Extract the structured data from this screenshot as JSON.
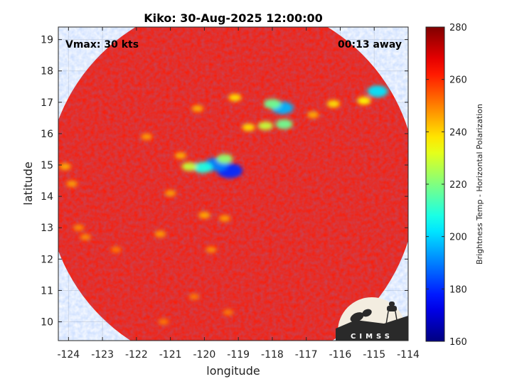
{
  "chart_data": {
    "type": "heatmap",
    "title": "Kiko: 30-Aug-2025 12:00:00",
    "xlabel": "longitude",
    "ylabel": "latitude",
    "xlim": [
      -124.3,
      -114
    ],
    "ylim": [
      9.4,
      19.4
    ],
    "x_ticks": [
      -124,
      -123,
      -122,
      -121,
      -120,
      -119,
      -118,
      -117,
      -116,
      -115,
      -114
    ],
    "y_ticks": [
      10,
      11,
      12,
      13,
      14,
      15,
      16,
      17,
      18,
      19
    ],
    "grid": true,
    "annotations": {
      "vmax": "Vmax: 30 kts",
      "away": "00:13 away"
    },
    "colorbar": {
      "label": "Brightness Temp - Horizontal Polarization",
      "range": [
        160,
        280
      ],
      "ticks": [
        160,
        180,
        200,
        220,
        240,
        260,
        280
      ],
      "colormap": "jet"
    },
    "swath": {
      "center_lon": -119.2,
      "center_lat": 14.35,
      "radius_deg": 5.45
    },
    "background_value": 262,
    "features": [
      {
        "lon": -119.25,
        "lat": 14.82,
        "value": 180
      },
      {
        "lon": -119.65,
        "lat": 15.02,
        "value": 190
      },
      {
        "lon": -120.05,
        "lat": 14.92,
        "value": 208
      },
      {
        "lon": -119.4,
        "lat": 15.2,
        "value": 222
      },
      {
        "lon": -120.45,
        "lat": 14.95,
        "value": 228
      },
      {
        "lon": -117.7,
        "lat": 16.82,
        "value": 196
      },
      {
        "lon": -118.0,
        "lat": 16.95,
        "value": 218
      },
      {
        "lon": -117.65,
        "lat": 16.3,
        "value": 218
      },
      {
        "lon": -118.2,
        "lat": 16.25,
        "value": 228
      },
      {
        "lon": -118.7,
        "lat": 16.2,
        "value": 238
      },
      {
        "lon": -114.9,
        "lat": 17.35,
        "value": 202
      },
      {
        "lon": -115.3,
        "lat": 17.05,
        "value": 235
      },
      {
        "lon": -116.2,
        "lat": 16.95,
        "value": 238
      },
      {
        "lon": -116.8,
        "lat": 16.6,
        "value": 244
      },
      {
        "lon": -119.1,
        "lat": 17.15,
        "value": 238
      },
      {
        "lon": -120.2,
        "lat": 16.8,
        "value": 244
      },
      {
        "lon": -120.7,
        "lat": 15.3,
        "value": 244
      },
      {
        "lon": -121.7,
        "lat": 15.9,
        "value": 246
      },
      {
        "lon": -121.0,
        "lat": 14.1,
        "value": 246
      },
      {
        "lon": -120.0,
        "lat": 13.4,
        "value": 244
      },
      {
        "lon": -119.4,
        "lat": 13.3,
        "value": 246
      },
      {
        "lon": -121.3,
        "lat": 12.8,
        "value": 246
      },
      {
        "lon": -119.8,
        "lat": 12.3,
        "value": 248
      },
      {
        "lon": -124.1,
        "lat": 14.95,
        "value": 244
      },
      {
        "lon": -123.9,
        "lat": 14.4,
        "value": 246
      },
      {
        "lon": -123.7,
        "lat": 13.0,
        "value": 248
      },
      {
        "lon": -123.5,
        "lat": 12.7,
        "value": 248
      },
      {
        "lon": -122.6,
        "lat": 12.3,
        "value": 250
      },
      {
        "lon": -120.3,
        "lat": 10.8,
        "value": 250
      },
      {
        "lon": -119.3,
        "lat": 10.3,
        "value": 250
      },
      {
        "lon": -121.2,
        "lat": 10.0,
        "value": 250
      }
    ]
  },
  "logo": {
    "text": "CIMSS"
  }
}
